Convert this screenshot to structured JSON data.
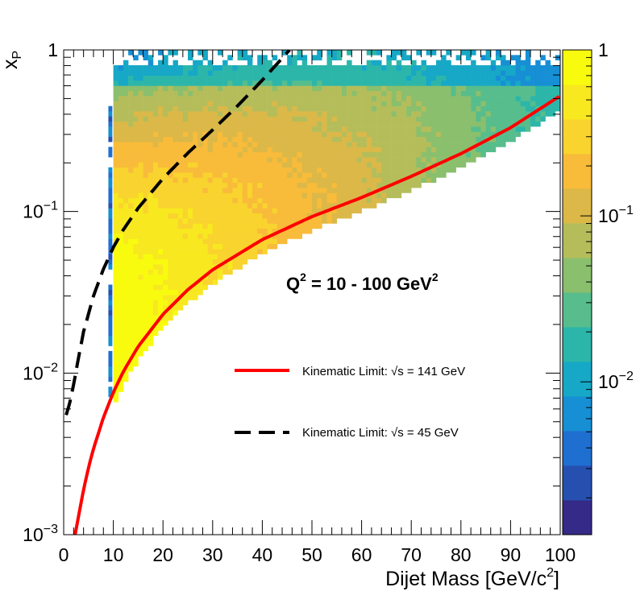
{
  "chart_data": {
    "type": "heatmap",
    "title": "",
    "xlabel_main": "Dijet Mass [GeV/c",
    "xlabel_sup": "2",
    "xlabel_end": "]",
    "ylabel_main": "x",
    "ylabel_sub": "P",
    "xlim": [
      0,
      100
    ],
    "ylim": [
      0.001,
      1
    ],
    "yscale": "log",
    "x_ticks": [
      {
        "value": 0,
        "label": "0"
      },
      {
        "value": 10,
        "label": "10"
      },
      {
        "value": 20,
        "label": "20"
      },
      {
        "value": 30,
        "label": "30"
      },
      {
        "value": 40,
        "label": "40"
      },
      {
        "value": 50,
        "label": "50"
      },
      {
        "value": 60,
        "label": "60"
      },
      {
        "value": 70,
        "label": "70"
      },
      {
        "value": 80,
        "label": "80"
      },
      {
        "value": 90,
        "label": "90"
      },
      {
        "value": 100,
        "label": "100"
      }
    ],
    "y_ticks": [
      {
        "value": 1,
        "base": "1",
        "exp": ""
      },
      {
        "value": 0.1,
        "base": "10",
        "exp": "−1"
      },
      {
        "value": 0.01,
        "base": "10",
        "exp": "−2"
      },
      {
        "value": 0.001,
        "base": "10",
        "exp": "−3"
      }
    ],
    "colorbar": {
      "zscale": "log",
      "zlim": [
        0.0012,
        1
      ],
      "ticks": [
        {
          "value": 1,
          "base": "1",
          "exp": ""
        },
        {
          "value": 0.1,
          "base": "10",
          "exp": "−1"
        },
        {
          "value": 0.01,
          "base": "10",
          "exp": "−2"
        }
      ],
      "colors": [
        "#352a87",
        "#2650b0",
        "#1f6fd1",
        "#168fd5",
        "#16a8c6",
        "#2cb6aa",
        "#57bd8c",
        "#8abf6d",
        "#b5bd5b",
        "#dbb848",
        "#f8bb3a",
        "#f9d32e",
        "#f8e820",
        "#f9fb0e"
      ]
    },
    "annotation": {
      "text_main": "Q",
      "sup1": "2",
      "text_mid": " = 10 - 100 GeV",
      "sup2": "2"
    },
    "legend": [
      {
        "label": "Kinematic Limit: √s = 141 GeV",
        "color": "#ff0000",
        "style": "solid"
      },
      {
        "label": "Kinematic Limit: √s = 45 GeV",
        "color": "#000000",
        "style": "dashed"
      }
    ],
    "series": [
      {
        "name": "Kinematic Limit: √s = 141 GeV",
        "x": [
          2.3,
          3,
          4,
          5,
          6,
          8,
          10,
          12,
          15,
          20,
          25,
          30,
          40,
          50,
          60,
          70,
          80,
          90,
          100
        ],
        "y": [
          0.001,
          0.0013,
          0.0019,
          0.0026,
          0.0034,
          0.0053,
          0.0076,
          0.0102,
          0.0146,
          0.0231,
          0.0328,
          0.0436,
          0.067,
          0.093,
          0.122,
          0.165,
          0.228,
          0.33,
          0.52
        ]
      },
      {
        "name": "Kinematic Limit: √s = 45 GeV",
        "x": [
          0.5,
          1.2,
          2,
          3,
          4,
          6,
          8,
          10,
          12,
          15,
          20,
          25,
          30,
          35,
          40,
          45.5
        ],
        "y": [
          0.0055,
          0.0065,
          0.0085,
          0.0125,
          0.018,
          0.03,
          0.044,
          0.06,
          0.077,
          0.105,
          0.16,
          0.23,
          0.32,
          0.45,
          0.65,
          1.0
        ]
      }
    ]
  }
}
